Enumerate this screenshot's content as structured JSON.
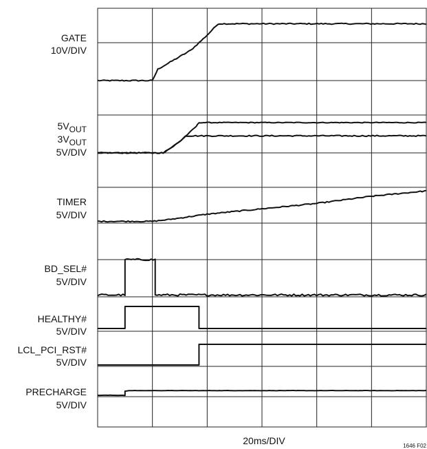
{
  "chart_data": {
    "type": "line",
    "title": "",
    "xlabel": "20ms/DIV",
    "figure_id": "1646 F02",
    "x_divisions": 6,
    "x_unit": "ms",
    "x_per_div": 20,
    "grid": true,
    "traces": [
      {
        "id": "gate",
        "labels": [
          "GATE",
          "10V/DIV"
        ],
        "points_div": [
          [
            0,
            -1.0
          ],
          [
            1.0,
            -1.0
          ],
          [
            1.1,
            -0.7
          ],
          [
            1.7,
            -0.2
          ],
          [
            2.0,
            0.2
          ],
          [
            2.2,
            0.5
          ],
          [
            6.0,
            0.5
          ]
        ],
        "noise": 0.03
      },
      {
        "id": "5vout",
        "labels": [
          "5VOUT"
        ],
        "points_div": [
          [
            0,
            -1.0
          ],
          [
            1.2,
            -1.0
          ],
          [
            1.5,
            -0.7
          ],
          [
            1.8,
            -0.3
          ],
          [
            1.85,
            -0.2
          ],
          [
            6.0,
            -0.2
          ]
        ],
        "noise": 0.02
      },
      {
        "id": "3vout",
        "labels": [
          "3VOUT",
          "5V/DIV"
        ],
        "points_div": [
          [
            0,
            -1.0
          ],
          [
            1.2,
            -1.0
          ],
          [
            1.5,
            -0.7
          ],
          [
            1.6,
            -0.55
          ],
          [
            6.0,
            -0.55
          ]
        ],
        "noise": 0.03
      },
      {
        "id": "timer",
        "labels": [
          "TIMER",
          "5V/DIV"
        ],
        "points_div": [
          [
            0,
            -0.95
          ],
          [
            1.0,
            -0.95
          ],
          [
            1.3,
            -0.9
          ],
          [
            2.0,
            -0.75
          ],
          [
            3.0,
            -0.6
          ],
          [
            4.0,
            -0.45
          ],
          [
            5.0,
            -0.25
          ],
          [
            6.0,
            -0.1
          ]
        ],
        "noise": 0.03
      },
      {
        "id": "bd_sel",
        "labels": [
          "BD_SEL#",
          "5V/DIV"
        ],
        "points_div": [
          [
            0,
            -0.95
          ],
          [
            0.5,
            -0.95
          ],
          [
            0.5,
            0.0
          ],
          [
            1.05,
            0.0
          ],
          [
            1.05,
            -0.95
          ],
          [
            6.0,
            -0.95
          ]
        ],
        "noise": 0.05
      },
      {
        "id": "healthy",
        "labels": [
          "HEALTHY#",
          "5V/DIV"
        ],
        "points_div": [
          [
            0,
            -0.9
          ],
          [
            0.5,
            -0.9
          ],
          [
            0.5,
            -0.1
          ],
          [
            1.85,
            -0.1
          ],
          [
            1.85,
            -0.9
          ],
          [
            6.0,
            -0.9
          ]
        ],
        "noise": 0.0
      },
      {
        "id": "lcl_pci_rst",
        "labels": [
          "LCL_PCI_RST#",
          "5V/DIV"
        ],
        "points_div": [
          [
            0,
            -0.95
          ],
          [
            1.85,
            -0.95
          ],
          [
            1.85,
            -0.2
          ],
          [
            6.0,
            -0.2
          ]
        ],
        "noise": 0.0
      },
      {
        "id": "precharge",
        "labels": [
          "PRECHARGE",
          "5V/DIV"
        ],
        "points_div": [
          [
            0,
            -0.95
          ],
          [
            0.5,
            -0.95
          ],
          [
            0.5,
            -0.8
          ],
          [
            0.6,
            -0.78
          ],
          [
            6.0,
            -0.78
          ]
        ],
        "noise": 0.01
      }
    ]
  }
}
